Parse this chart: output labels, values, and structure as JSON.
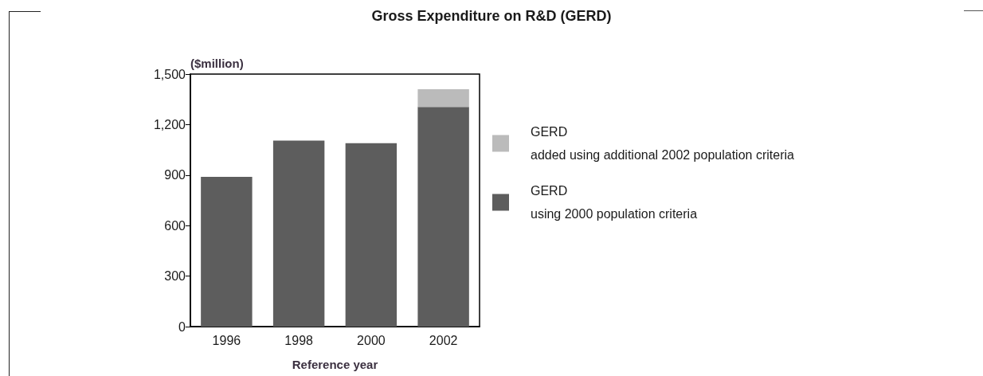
{
  "chart_data": {
    "type": "bar",
    "title": "Gross Expenditure on R&D (GERD)",
    "xlabel": "Reference year",
    "ylabel": "($million)",
    "categories": [
      "1996",
      "1998",
      "2000",
      "2002"
    ],
    "series": [
      {
        "name": "GERD\nusing 2000 population criteria",
        "color": "#5d5d5d",
        "values": [
          890,
          1105,
          1090,
          1305
        ]
      },
      {
        "name": "GERD\nadded using additional 2002 population criteria",
        "color": "#bbbbbb",
        "values": [
          null,
          null,
          null,
          105
        ]
      }
    ],
    "stacked": true,
    "ylim": [
      0,
      1500
    ],
    "yticks": [
      0,
      300,
      600,
      900,
      {
        "value": 1200,
        "label": "1,200"
      },
      {
        "value": 1500,
        "label": "1,500"
      }
    ],
    "grid": false,
    "legend": "right"
  }
}
